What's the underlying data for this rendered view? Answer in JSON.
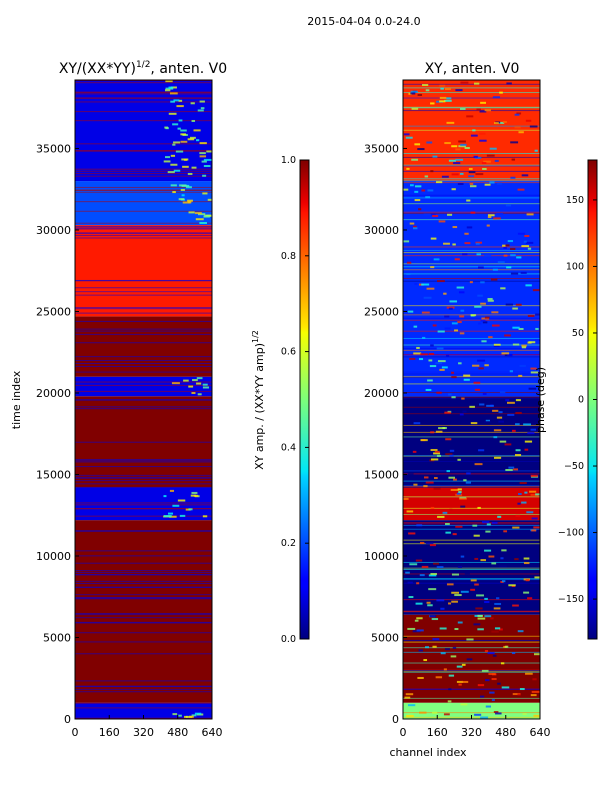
{
  "figure": {
    "suptitle": "2015-04-04 0.0-24.0"
  },
  "chart_data": [
    {
      "type": "heatmap",
      "title": "XY/(XX*YY)^{1/2}, anten. V0",
      "title_main": "XY/(XX*YY)",
      "title_sup": "1/2",
      "title_tail": ", anten. V0",
      "xlabel": "",
      "ylabel": "time index",
      "x_ticks": [
        0,
        160,
        320,
        480,
        640
      ],
      "y_ticks": [
        0,
        5000,
        10000,
        15000,
        20000,
        25000,
        30000,
        35000
      ],
      "xlim": [
        0,
        640
      ],
      "ylim": [
        0,
        39200
      ],
      "colorbar": {
        "label_main": "XY amp. / (XX*YY amp)",
        "label_sup": "1/2",
        "ticks": [
          "0.0",
          "0.2",
          "0.4",
          "0.6",
          "0.8",
          "1.0"
        ],
        "range": [
          0,
          1
        ]
      },
      "bands": [
        {
          "from": 0,
          "to": 1000,
          "value": 0.1
        },
        {
          "from": 1000,
          "to": 12200,
          "value": 1.0
        },
        {
          "from": 12200,
          "to": 14200,
          "value": 0.1
        },
        {
          "from": 14200,
          "to": 19800,
          "value": 1.0
        },
        {
          "from": 19800,
          "to": 21000,
          "value": 0.1
        },
        {
          "from": 21000,
          "to": 24700,
          "value": 1.0
        },
        {
          "from": 24700,
          "to": 30300,
          "value": 0.85
        },
        {
          "from": 30300,
          "to": 33000,
          "value": 0.2
        },
        {
          "from": 33000,
          "to": 39200,
          "value": 0.1
        }
      ]
    },
    {
      "type": "heatmap",
      "title": "XY, anten. V0",
      "xlabel": "channel index",
      "ylabel": "",
      "x_ticks": [
        0,
        160,
        320,
        480,
        640
      ],
      "y_ticks": [
        0,
        5000,
        10000,
        15000,
        20000,
        25000,
        30000,
        35000
      ],
      "xlim": [
        0,
        640
      ],
      "ylim": [
        0,
        39200
      ],
      "colorbar": {
        "label": "phase (deg)",
        "ticks": [
          "−150",
          "−100",
          "−50",
          "0",
          "50",
          "100",
          "150"
        ],
        "range": [
          -180,
          180
        ]
      },
      "bands": [
        {
          "from": 0,
          "to": 1000,
          "value": 0
        },
        {
          "from": 1000,
          "to": 6400,
          "value": 180
        },
        {
          "from": 6400,
          "to": 12200,
          "value": -180
        },
        {
          "from": 12200,
          "to": 14200,
          "value": 150
        },
        {
          "from": 14200,
          "to": 19800,
          "value": -180
        },
        {
          "from": 19800,
          "to": 33000,
          "value": -120
        },
        {
          "from": 33000,
          "to": 39200,
          "value": 120
        }
      ]
    }
  ]
}
